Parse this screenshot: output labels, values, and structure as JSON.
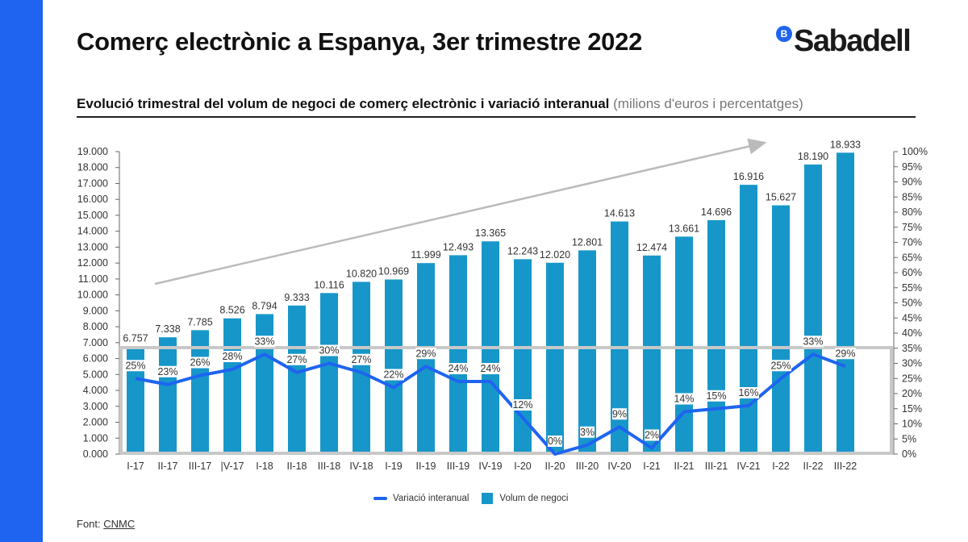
{
  "title": "Comerç electrònic a Espanya, 3er trimestre 2022",
  "logo": {
    "text": "Sabadell",
    "badge": "B",
    "color": "#1e64f0"
  },
  "subtitle": {
    "main": "Evolució trimestral del volum de negoci de comerç electrònic i variació interanual",
    "units": "(milions d'euros i percentatges)"
  },
  "source": {
    "label": "Font:",
    "link": "CNMC"
  },
  "chart_data": {
    "type": "bar",
    "categories": [
      "I-17",
      "II-17",
      "III-17",
      "|V-17",
      "I-18",
      "II-18",
      "III-18",
      "IV-18",
      "I-19",
      "II-19",
      "III-19",
      "IV-19",
      "I-20",
      "II-20",
      "III-20",
      "IV-20",
      "I-21",
      "II-21",
      "III-21",
      "IV-21",
      "I-22",
      "II-22",
      "III-22"
    ],
    "series": [
      {
        "name": "Volum de negoci",
        "type": "bar",
        "axis": "left",
        "color": "#1797c9",
        "values": [
          6757,
          7338,
          7785,
          8526,
          8794,
          9333,
          10116,
          10820,
          10969,
          11999,
          12493,
          13365,
          12243,
          12020,
          12801,
          14613,
          12474,
          13661,
          14696,
          16916,
          15627,
          18190,
          18933
        ],
        "labels": [
          "6.757",
          "7.338",
          "7.785",
          "8.526",
          "8.794",
          "9.333",
          "10.116",
          "10.820",
          "10.969",
          "11.999",
          "12.493",
          "13.365",
          "12.243",
          "12.020",
          "12.801",
          "14.613",
          "12.474",
          "13.661",
          "14.696",
          "16.916",
          "15.627",
          "18.190",
          "18.933"
        ]
      },
      {
        "name": "Variació interanual",
        "type": "line",
        "axis": "right",
        "color": "#1e64f0",
        "values": [
          25,
          23,
          26,
          28,
          33,
          27,
          30,
          27,
          22,
          29,
          24,
          24,
          12,
          0,
          3,
          9,
          2,
          14,
          15,
          16,
          25,
          33,
          29
        ],
        "labels": [
          "25%",
          "23%",
          "26%",
          "28%",
          "33%",
          "27%",
          "30%",
          "27%",
          "22%",
          "29%",
          "24%",
          "24%",
          "12%",
          "0%",
          "3%",
          "9%",
          "2%",
          "14%",
          "15%",
          "16%",
          "25%",
          "33%",
          "29%"
        ]
      }
    ],
    "ylim": [
      0,
      19000
    ],
    "y2lim": [
      0,
      100
    ],
    "yticks": [
      "0.000",
      "1.000",
      "2.000",
      "3.000",
      "4.000",
      "5.000",
      "6.000",
      "7.000",
      "8.000",
      "9.000",
      "10.000",
      "11.000",
      "12.000",
      "13.000",
      "14.000",
      "15.000",
      "16.000",
      "17.000",
      "18.000",
      "19.000"
    ],
    "y2ticks": [
      "0%",
      "5%",
      "10%",
      "15%",
      "20%",
      "25%",
      "30%",
      "35%",
      "40%",
      "45%",
      "50%",
      "55%",
      "60%",
      "65%",
      "70%",
      "75%",
      "80%",
      "85%",
      "90%",
      "95%",
      "100%"
    ],
    "legend": "bottom",
    "grid": false,
    "trend_arrow": true
  }
}
